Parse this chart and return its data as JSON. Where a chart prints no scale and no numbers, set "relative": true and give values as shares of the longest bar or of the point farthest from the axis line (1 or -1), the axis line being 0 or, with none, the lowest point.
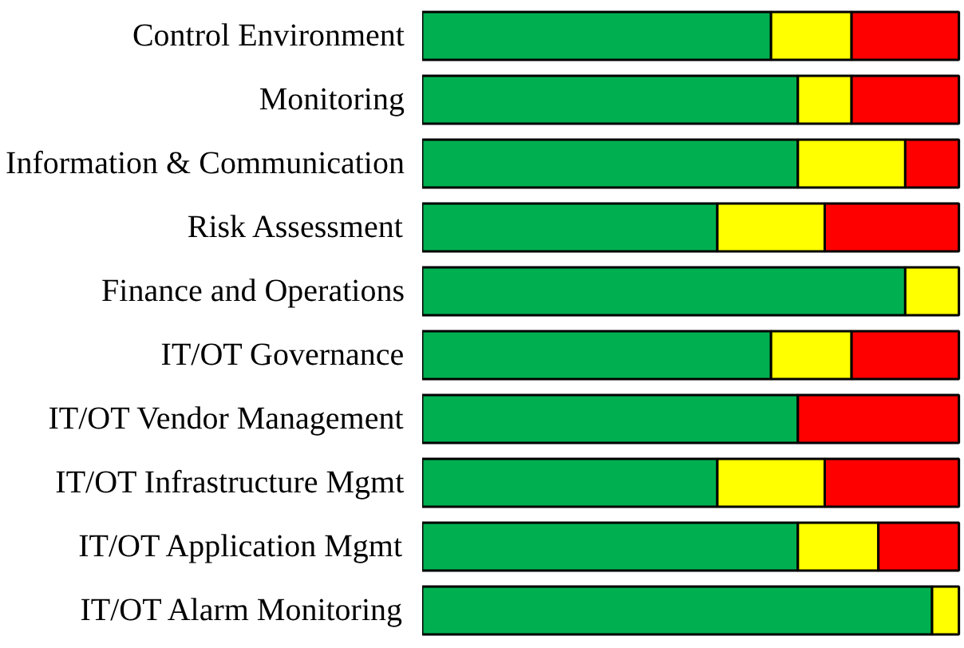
{
  "chart_data": {
    "type": "bar",
    "orientation": "horizontal",
    "stacked": true,
    "relative": true,
    "grid": false,
    "categories": [
      "Control Environment",
      "Monitoring",
      "Information & Communication",
      "Risk Assessment",
      "Finance and Operations",
      "IT/OT Governance",
      "IT/OT Vendor Management",
      "IT/OT Infrastructure Mgmt",
      "IT/OT Application Mgmt",
      "IT/OT Alarm Monitoring"
    ],
    "series": [
      {
        "color": "#00b050",
        "values": [
          0.65,
          0.7,
          0.7,
          0.55,
          0.9,
          0.65,
          0.7,
          0.55,
          0.7,
          0.95
        ]
      },
      {
        "color": "#ffff00",
        "values": [
          0.15,
          0.1,
          0.2,
          0.2,
          0.1,
          0.15,
          null,
          0.2,
          0.15,
          0.05
        ]
      },
      {
        "color": "#ff0000",
        "values": [
          0.2,
          0.2,
          0.1,
          0.25,
          null,
          0.2,
          0.3,
          0.25,
          0.15,
          null
        ]
      }
    ]
  }
}
